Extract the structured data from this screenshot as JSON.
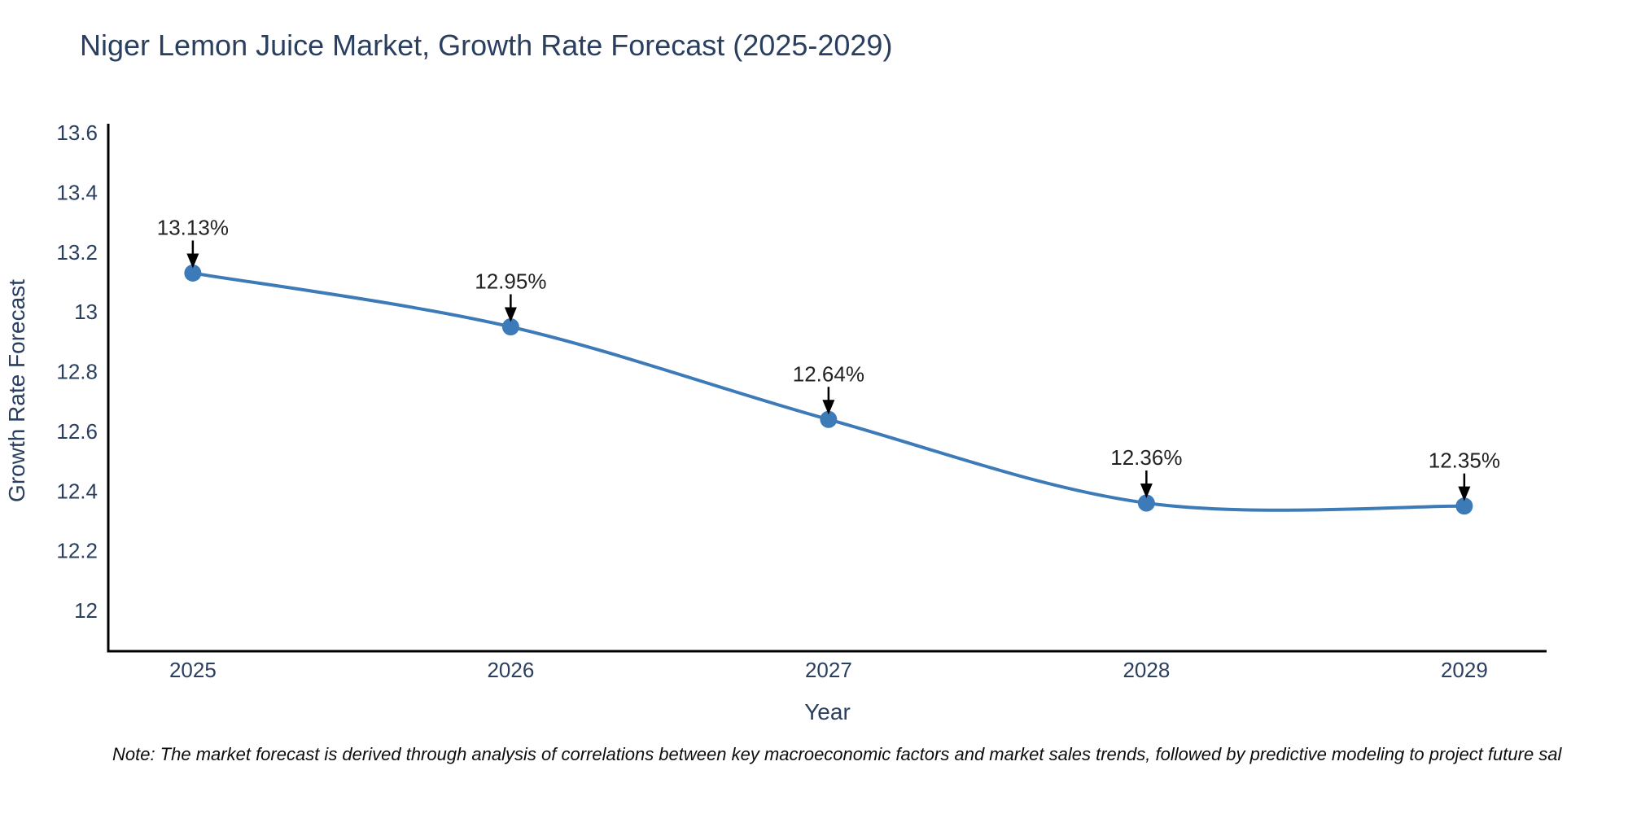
{
  "title": "Niger Lemon Juice Market, Growth Rate Forecast (2025-2029)",
  "note": "Note: The market forecast is derived through analysis of correlations between key macroeconomic factors and market sales trends, followed by predictive modeling to project future sal",
  "colors": {
    "line": "#3c7ab8",
    "marker": "#3c7ab8",
    "axis_line": "#000000",
    "tick_text": "#2a3f5f",
    "axis_title_text": "#2a3f5f",
    "annotation_text": "#222222",
    "arrow": "#000000",
    "title_text": "#2a3f5f",
    "background": "#ffffff"
  },
  "chart_data": {
    "type": "line",
    "title": "Niger Lemon Juice Market, Growth Rate Forecast (2025-2029)",
    "xlabel": "Year",
    "ylabel": "Growth Rate Forecast",
    "x": [
      2025,
      2026,
      2027,
      2028,
      2029
    ],
    "series": [
      {
        "name": "Growth Rate Forecast",
        "values": [
          13.13,
          12.95,
          12.64,
          12.36,
          12.35
        ]
      }
    ],
    "point_labels": [
      "13.13%",
      "12.95%",
      "12.64%",
      "12.36%",
      "12.35%"
    ],
    "x_tick_labels": [
      "2025",
      "2026",
      "2027",
      "2028",
      "2029"
    ],
    "y_tick_labels": [
      "12",
      "12.2",
      "12.4",
      "12.6",
      "12.8",
      "13",
      "13.2",
      "13.4",
      "13.6"
    ],
    "y_ticks": [
      12,
      12.2,
      12.4,
      12.6,
      12.8,
      13,
      13.2,
      13.4,
      13.6
    ],
    "ylim": [
      11.864,
      13.63
    ],
    "xlim": [
      2024.734,
      2029.259
    ],
    "line_shape": "spline",
    "grid": false,
    "legend_position": "none"
  }
}
